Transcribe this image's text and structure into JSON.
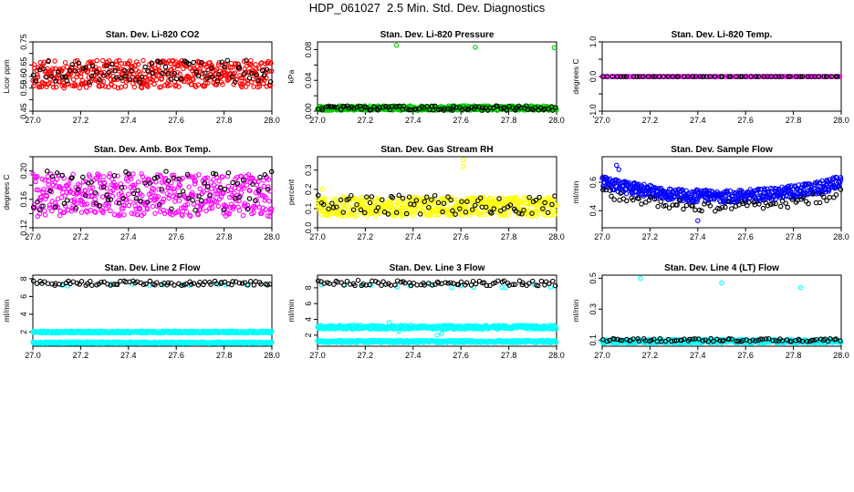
{
  "figure": {
    "title": "HDP_061027  2.5 Min. Std. Dev. Diagnostics"
  },
  "chart_data": [
    {
      "id": "co2",
      "type": "scatter",
      "title": "Stan. Dev. Li-820 CO2",
      "ylabel": "Licor ppm",
      "xlim": [
        27.0,
        28.0
      ],
      "ylim": [
        0.45,
        0.75
      ],
      "xticks": [
        27.0,
        27.2,
        27.4,
        27.6,
        27.8,
        28.0
      ],
      "xtick_labels": [
        "27.0",
        "27.2",
        "27.4",
        "27.6",
        "27.8",
        "28.0"
      ],
      "yticks": [
        0.45,
        0.5,
        0.55,
        0.6,
        0.65,
        0.7,
        0.75
      ],
      "ytick_labels": [
        "0.45",
        "",
        "0.55",
        "0.60",
        "0.65",
        "",
        "0.75"
      ],
      "series": [
        {
          "color": "#ff0000",
          "n": 460,
          "model": "uniform",
          "params": {
            "base": 0.61,
            "spread": 0.06,
            "seed": 11
          }
        },
        {
          "color": "#000000",
          "n": 80,
          "model": "uniform",
          "params": {
            "base": 0.62,
            "spread": 0.05,
            "seed": 12
          }
        }
      ]
    },
    {
      "id": "pressure",
      "type": "scatter",
      "title": "Stan. Dev. Li-820 Pressure",
      "ylabel": "kPa",
      "xlim": [
        27.0,
        28.0
      ],
      "ylim": [
        0.0,
        0.09
      ],
      "xticks": [
        27.0,
        27.2,
        27.4,
        27.6,
        27.8,
        28.0
      ],
      "xtick_labels": [
        "27.0",
        "27.2",
        "27.4",
        "27.6",
        "27.8",
        "28.0"
      ],
      "yticks": [
        0.0,
        0.02,
        0.04,
        0.06,
        0.08
      ],
      "ytick_labels": [
        "0.00",
        "",
        "0.04",
        "",
        "0.08"
      ],
      "series": [
        {
          "color": "#00cc00",
          "n": 520,
          "model": "uniform",
          "params": {
            "base": 0.004,
            "spread": 0.003,
            "seed": 21
          },
          "extra": [
            [
              27.33,
              0.0855
            ],
            [
              27.66,
              0.083
            ],
            [
              27.99,
              0.0825
            ]
          ]
        },
        {
          "color": "#000000",
          "n": 100,
          "model": "uniform",
          "params": {
            "base": 0.004,
            "spread": 0.003,
            "seed": 22
          }
        }
      ]
    },
    {
      "id": "temp",
      "type": "scatter",
      "title": "Stan. Dev. Li-820 Temp.",
      "ylabel": "degrees C",
      "xlim": [
        27.0,
        28.0
      ],
      "ylim": [
        -1.0,
        1.0
      ],
      "xticks": [
        27.0,
        27.2,
        27.4,
        27.6,
        27.8,
        28.0
      ],
      "xtick_labels": [
        "27.0",
        "27.2",
        "27.4",
        "27.6",
        "27.8",
        "28.0"
      ],
      "yticks": [
        -1.0,
        -0.5,
        0.0,
        0.5,
        1.0
      ],
      "ytick_labels": [
        "-1.0",
        "",
        "0.0",
        "",
        "1.0"
      ],
      "series": [
        {
          "color": "#ff00ff",
          "n": 160,
          "model": "const",
          "params": {
            "base": 0.0,
            "spread": 0.0,
            "seed": 31
          }
        },
        {
          "color": "#000000",
          "n": 60,
          "model": "const",
          "params": {
            "base": 0.0,
            "spread": 0.0,
            "seed": 32
          }
        }
      ]
    },
    {
      "id": "ambbox",
      "type": "scatter",
      "title": "Stan. Dev. Amb. Box Temp.",
      "ylabel": "degrees C",
      "xlim": [
        27.0,
        28.0
      ],
      "ylim": [
        0.12,
        0.22
      ],
      "xticks": [
        27.0,
        27.2,
        27.4,
        27.6,
        27.8,
        28.0
      ],
      "xtick_labels": [
        "27.0",
        "27.2",
        "27.4",
        "27.6",
        "27.8",
        "28.0"
      ],
      "yticks": [
        0.12,
        0.14,
        0.16,
        0.18,
        0.2,
        0.22
      ],
      "ytick_labels": [
        "0.12",
        "",
        "0.16",
        "",
        "0.20",
        ""
      ],
      "series": [
        {
          "color": "#ff00ff",
          "n": 470,
          "model": "uniform",
          "params": {
            "base": 0.166,
            "spread": 0.03,
            "seed": 41
          }
        },
        {
          "color": "#000000",
          "n": 80,
          "model": "uniform",
          "params": {
            "base": 0.172,
            "spread": 0.028,
            "seed": 42
          }
        }
      ]
    },
    {
      "id": "rh",
      "type": "scatter",
      "title": "Stan. Dev. Gas Stream RH",
      "ylabel": "percent",
      "xlim": [
        27.0,
        28.0
      ],
      "ylim": [
        0.0,
        0.37
      ],
      "xticks": [
        27.0,
        27.2,
        27.4,
        27.6,
        27.8,
        28.0
      ],
      "xtick_labels": [
        "27.0",
        "27.2",
        "27.4",
        "27.6",
        "27.8",
        "28.0"
      ],
      "yticks": [
        0.0,
        0.1,
        0.2,
        0.3
      ],
      "ytick_labels": [
        "0.0",
        "0.1",
        "0.2",
        "0.3"
      ],
      "series": [
        {
          "color": "#ffff00",
          "n": 520,
          "model": "uniform",
          "params": {
            "base": 0.11,
            "spread": 0.05,
            "seed": 51
          },
          "extra": [
            [
              27.61,
              0.355
            ],
            [
              27.61,
              0.32
            ],
            [
              27.02,
              0.2
            ]
          ]
        },
        {
          "color": "#000000",
          "n": 80,
          "model": "uniform",
          "params": {
            "base": 0.12,
            "spread": 0.05,
            "seed": 52
          }
        }
      ]
    },
    {
      "id": "sampleflow",
      "type": "scatter",
      "title": "Stan. Dev. Sample Flow",
      "ylabel": "ml/min",
      "xlim": [
        27.0,
        28.0
      ],
      "ylim": [
        0.28,
        0.78
      ],
      "xticks": [
        27.0,
        27.2,
        27.4,
        27.6,
        27.8,
        28.0
      ],
      "xtick_labels": [
        "27.0",
        "27.2",
        "27.4",
        "27.6",
        "27.8",
        "28.0"
      ],
      "yticks": [
        0.4,
        0.6
      ],
      "ytick_labels": [
        "0.4",
        "0.6"
      ],
      "series": [
        {
          "color": "#0000ff",
          "n": 520,
          "model": "ushape",
          "params": {
            "base": 0.6,
            "mid": 0.5,
            "spread": 0.045,
            "seed": 61
          },
          "extra": [
            [
              27.06,
              0.72
            ],
            [
              27.07,
              0.69
            ],
            [
              27.4,
              0.33
            ]
          ]
        },
        {
          "color": "#000000",
          "n": 80,
          "model": "ushape",
          "params": {
            "base": 0.52,
            "mid": 0.43,
            "spread": 0.035,
            "seed": 62
          }
        }
      ]
    },
    {
      "id": "line2",
      "type": "scatter",
      "title": "Stan. Dev. Line 2 Flow",
      "ylabel": "ml/min",
      "xlim": [
        27.0,
        28.0
      ],
      "ylim": [
        0.4,
        8.4
      ],
      "xticks": [
        27.0,
        27.2,
        27.4,
        27.6,
        27.8,
        28.0
      ],
      "xtick_labels": [
        "27.0",
        "27.2",
        "27.4",
        "27.6",
        "27.8",
        "28.0"
      ],
      "yticks": [
        2,
        4,
        6,
        8
      ],
      "ytick_labels": [
        "2",
        "4",
        "6",
        "8"
      ],
      "series": [
        {
          "color": "#00ffff",
          "n": 420,
          "model": "uniform",
          "params": {
            "base": 2.0,
            "spread": 0.12,
            "seed": 71
          }
        },
        {
          "color": "#00ffff",
          "n": 420,
          "model": "uniform",
          "params": {
            "base": 0.8,
            "spread": 0.1,
            "seed": 72
          }
        },
        {
          "color": "#00ffff",
          "n": 14,
          "model": "uniform",
          "params": {
            "base": 7.3,
            "spread": 0.2,
            "seed": 73
          }
        },
        {
          "color": "#000000",
          "n": 85,
          "model": "uniform",
          "params": {
            "base": 7.5,
            "spread": 0.25,
            "seed": 74
          }
        }
      ]
    },
    {
      "id": "line3",
      "type": "scatter",
      "title": "Stan. Dev. Line 3 Flow",
      "ylabel": "ml/min",
      "xlim": [
        27.0,
        28.0
      ],
      "ylim": [
        0.6,
        9.6
      ],
      "xticks": [
        27.0,
        27.2,
        27.4,
        27.6,
        27.8,
        28.0
      ],
      "xtick_labels": [
        "27.0",
        "27.2",
        "27.4",
        "27.6",
        "27.8",
        "28.0"
      ],
      "yticks": [
        2,
        4,
        6,
        8
      ],
      "ytick_labels": [
        "2",
        "4",
        "6",
        "8"
      ],
      "series": [
        {
          "color": "#00ffff",
          "n": 430,
          "model": "uniform",
          "params": {
            "base": 3.0,
            "spread": 0.25,
            "seed": 81
          },
          "extra": [
            [
              27.3,
              3.6
            ],
            [
              27.34,
              2.5
            ],
            [
              27.5,
              2.0
            ],
            [
              27.52,
              2.2
            ]
          ]
        },
        {
          "color": "#00ffff",
          "n": 430,
          "model": "uniform",
          "params": {
            "base": 1.2,
            "spread": 0.15,
            "seed": 82
          }
        },
        {
          "color": "#00ffff",
          "n": 14,
          "model": "uniform",
          "params": {
            "base": 8.2,
            "spread": 0.3,
            "seed": 83
          }
        },
        {
          "color": "#000000",
          "n": 85,
          "model": "uniform",
          "params": {
            "base": 8.6,
            "spread": 0.35,
            "seed": 84
          }
        }
      ]
    },
    {
      "id": "line4",
      "type": "scatter",
      "title": "Stan. Dev. Line 4 (LT) Flow",
      "ylabel": "ml/min",
      "xlim": [
        27.0,
        28.0
      ],
      "ylim": [
        0.06,
        0.52
      ],
      "xticks": [
        27.0,
        27.2,
        27.4,
        27.6,
        27.8,
        28.0
      ],
      "xtick_labels": [
        "27.0",
        "27.2",
        "27.4",
        "27.6",
        "27.8",
        "28.0"
      ],
      "yticks": [
        0.1,
        0.3,
        0.5
      ],
      "ytick_labels": [
        "0.1",
        "0.3",
        "0.5"
      ],
      "series": [
        {
          "color": "#00ffff",
          "n": 430,
          "model": "uniform",
          "params": {
            "base": 0.092,
            "spread": 0.012,
            "seed": 91
          },
          "extra": [
            [
              27.16,
              0.5
            ],
            [
              27.5,
              0.47
            ],
            [
              27.83,
              0.44
            ]
          ]
        },
        {
          "color": "#000000",
          "n": 85,
          "model": "uniform",
          "params": {
            "base": 0.1,
            "spread": 0.01,
            "seed": 92
          }
        }
      ]
    }
  ]
}
